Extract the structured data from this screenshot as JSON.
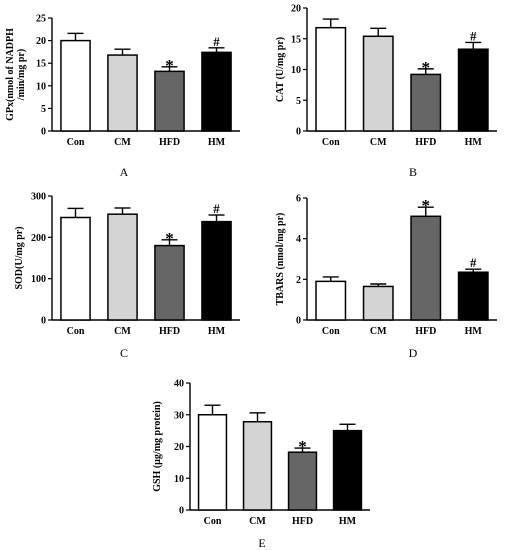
{
  "chart_data": [
    {
      "type": "bar",
      "panel_label": "A",
      "ylabel": "GPx(nmol of NADPH /min/mg pr)",
      "ylabel_lines": [
        "GPx(nmol of NADPH",
        "/min/mg pr)"
      ],
      "categories": [
        "Con",
        "CM",
        "HFD",
        "HM"
      ],
      "values": [
        20.0,
        16.8,
        13.2,
        17.4
      ],
      "errors": [
        1.6,
        1.3,
        1.0,
        1.0
      ],
      "annotations": [
        "",
        "",
        "*",
        "#"
      ],
      "ylim": [
        0,
        25
      ],
      "yticks": [
        0,
        5,
        10,
        15,
        20,
        25
      ],
      "colors": [
        "#ffffff",
        "#d4d4d4",
        "#666666",
        "#000000"
      ],
      "grid": false
    },
    {
      "type": "bar",
      "panel_label": "B",
      "ylabel": "CAT (U/mg pr)",
      "ylabel_lines": [
        "CAT (U/mg pr)"
      ],
      "categories": [
        "Con",
        "CM",
        "HFD",
        "HM"
      ],
      "values": [
        16.8,
        15.4,
        9.2,
        13.3
      ],
      "errors": [
        1.4,
        1.3,
        0.9,
        1.1
      ],
      "annotations": [
        "",
        "",
        "*",
        "#"
      ],
      "ylim": [
        0,
        20
      ],
      "yticks": [
        0,
        5,
        10,
        15,
        20
      ],
      "colors": [
        "#ffffff",
        "#d4d4d4",
        "#666666",
        "#000000"
      ],
      "grid": false
    },
    {
      "type": "bar",
      "panel_label": "C",
      "ylabel": "SOD(U/mg pr)",
      "ylabel_lines": [
        "SOD(U/mg pr)"
      ],
      "categories": [
        "Con",
        "CM",
        "HFD",
        "HM"
      ],
      "values": [
        248,
        256,
        180,
        238
      ],
      "errors": [
        22,
        15,
        14,
        16
      ],
      "annotations": [
        "",
        "",
        "*",
        "#"
      ],
      "ylim": [
        0,
        300
      ],
      "yticks": [
        0,
        100,
        200,
        300
      ],
      "colors": [
        "#ffffff",
        "#d4d4d4",
        "#666666",
        "#000000"
      ],
      "grid": false
    },
    {
      "type": "bar",
      "panel_label": "D",
      "ylabel": "TBARS (nmol/mg pr)",
      "ylabel_lines": [
        "TBARS (nmol/mg pr)"
      ],
      "categories": [
        "Con",
        "CM",
        "HFD",
        "HM"
      ],
      "values": [
        1.9,
        1.65,
        5.1,
        2.35
      ],
      "errors": [
        0.22,
        0.12,
        0.45,
        0.15
      ],
      "annotations": [
        "",
        "",
        "*",
        "#"
      ],
      "ylim": [
        0,
        6
      ],
      "yticks": [
        0,
        2,
        4,
        6
      ],
      "colors": [
        "#ffffff",
        "#d4d4d4",
        "#666666",
        "#000000"
      ],
      "grid": false
    },
    {
      "type": "bar",
      "panel_label": "E",
      "ylabel": "GSH (µg/mg protein)",
      "ylabel_lines": [
        "GSH (µg/mg protein)"
      ],
      "categories": [
        "Con",
        "CM",
        "HFD",
        "HM"
      ],
      "values": [
        30.0,
        27.8,
        18.2,
        25.0
      ],
      "errors": [
        3.0,
        2.8,
        1.3,
        2.0
      ],
      "annotations": [
        "",
        "",
        "*",
        ""
      ],
      "ylim": [
        0,
        40
      ],
      "yticks": [
        0,
        10,
        20,
        30,
        40
      ],
      "colors": [
        "#ffffff",
        "#d4d4d4",
        "#666666",
        "#000000"
      ],
      "grid": false
    }
  ]
}
